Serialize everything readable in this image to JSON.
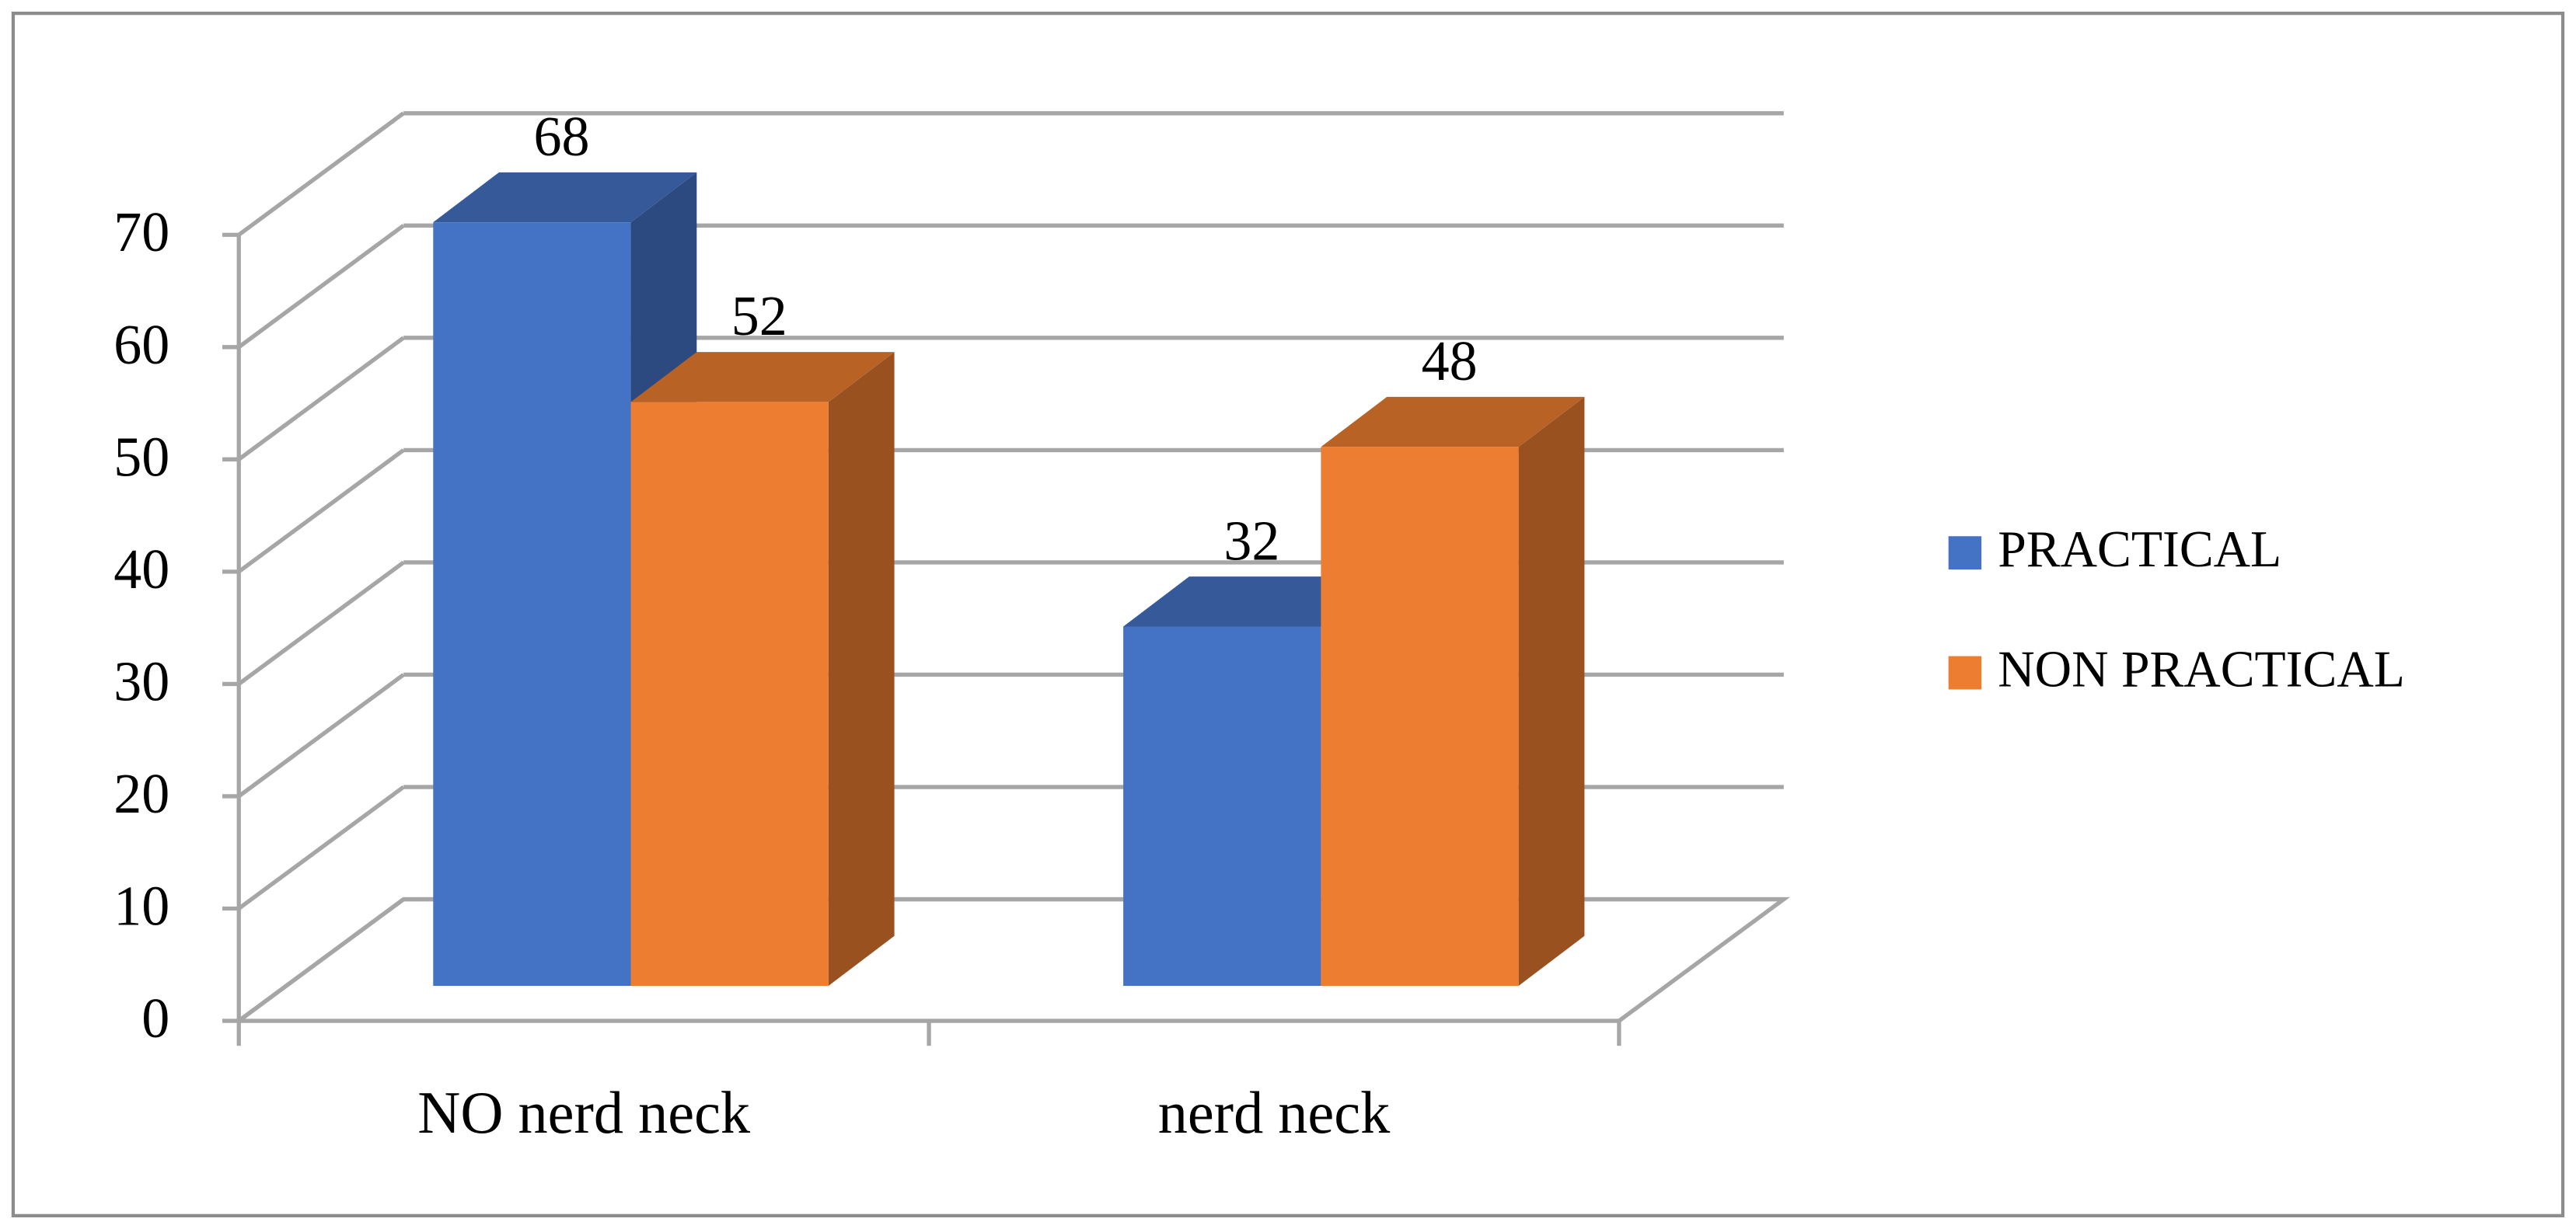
{
  "chart_data": {
    "type": "bar3d",
    "categories": [
      "NO nerd neck",
      "nerd neck"
    ],
    "series": [
      {
        "name": "PRACTICAL",
        "color": "#4472c4",
        "values": [
          68,
          32
        ]
      },
      {
        "name": "NON PRACTICAL",
        "color": "#ed7d31",
        "values": [
          52,
          48
        ]
      }
    ],
    "ylim": [
      0,
      70
    ],
    "yticks": [
      0,
      10,
      20,
      30,
      40,
      50,
      60,
      70
    ],
    "grid": true,
    "legend": "right"
  }
}
